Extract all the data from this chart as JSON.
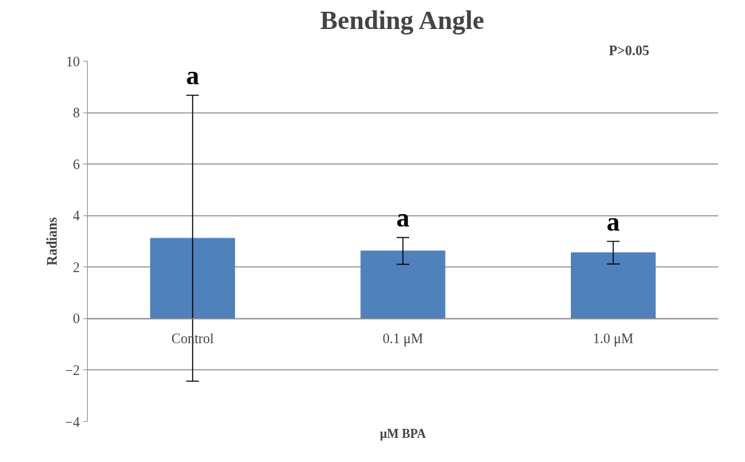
{
  "chart_data": {
    "type": "bar",
    "title": "Bending Angle",
    "xlabel": "μM BPA",
    "ylabel": "Radians",
    "categories": [
      "Control",
      "0.1 μM",
      "1.0 μM"
    ],
    "series": [
      {
        "color": "#4f81bd",
        "values": [
          3.12,
          2.63,
          2.56
        ],
        "errors": [
          5.55,
          0.52,
          0.44
        ]
      }
    ],
    "ylim": [
      -4,
      10
    ],
    "yticks": [
      -4,
      -2,
      0,
      2,
      4,
      6,
      8,
      10
    ],
    "grid": "y",
    "annotations": [
      "a",
      "a",
      "a",
      "P>0.05"
    ]
  }
}
